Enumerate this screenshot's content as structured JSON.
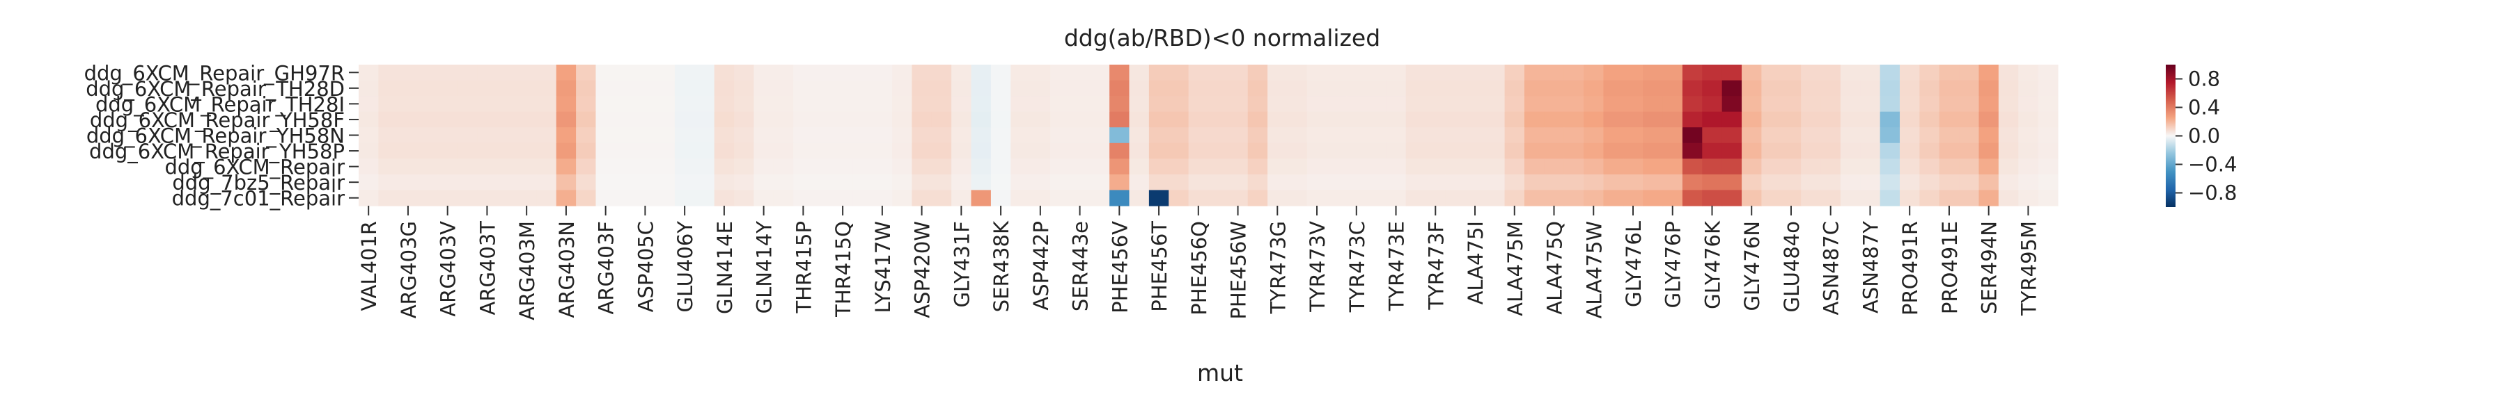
{
  "chart_data": {
    "type": "heatmap",
    "title": "ddg(ab/RBD)<0 normalized",
    "xlabel": "mut",
    "ylabel": "",
    "rows": [
      "ddg_6XCM_Repair_GH97R",
      "ddg_6XCM_Repair_TH28D",
      "ddg_6XCM_Repair_TH28I",
      "ddg_6XCM_Repair_YH58F",
      "ddg_6XCM_Repair_YH58N",
      "ddg_6XCM_Repair_YH58P",
      "ddg_6XCM_Repair",
      "ddg_7bz5_Repair",
      "ddg_7c01_Repair"
    ],
    "x_tick_labels": [
      "VAL401R",
      "ARG403G",
      "ARG403V",
      "ARG403T",
      "ARG403M",
      "ARG403N",
      "ARG403F",
      "ASP405C",
      "GLU406Y",
      "GLN414E",
      "GLN414Y",
      "THR415P",
      "THR415Q",
      "LYS417W",
      "ASP420W",
      "GLY431F",
      "SER438K",
      "ASP442P",
      "SER443e",
      "PHE456V",
      "PHE456T",
      "PHE456Q",
      "PHE456W",
      "TYR473G",
      "TYR473V",
      "TYR473C",
      "TYR473E",
      "TYR473F",
      "ALA475I",
      "ALA475M",
      "ALA475Q",
      "ALA475W",
      "GLY476L",
      "GLY476P",
      "GLY476K",
      "GLY476N",
      "GLU484o",
      "ASN487C",
      "ASN487Y",
      "PRO491R",
      "PRO491E",
      "SER494N",
      "TYR495M"
    ],
    "n_columns": 86,
    "columns_per_tick": 2,
    "colorbar": {
      "colormap": "RdBu_r",
      "vmin": -1.0,
      "vmax": 1.0,
      "tick_labels": [
        "0.8",
        "0.4",
        "0.0",
        "−0.4",
        "−0.8"
      ],
      "tick_values": [
        0.8,
        0.4,
        0.0,
        -0.4,
        -0.8
      ]
    },
    "column_profile": [
      0.04,
      0.06,
      0.06,
      0.06,
      0.06,
      0.06,
      0.06,
      0.06,
      0.06,
      0.06,
      0.26,
      0.12,
      0.01,
      0.01,
      0.01,
      0.01,
      -0.02,
      -0.02,
      0.07,
      0.06,
      0.03,
      0.03,
      0.02,
      0.02,
      0.02,
      0.02,
      0.02,
      0.03,
      0.09,
      0.09,
      0.04,
      -0.04,
      -0.01,
      0.04,
      0.04,
      0.03,
      0.03,
      0.03,
      0.35,
      0.05,
      0.13,
      0.13,
      0.09,
      0.09,
      0.09,
      0.13,
      0.05,
      0.05,
      0.04,
      0.04,
      0.04,
      0.04,
      0.04,
      0.06,
      0.06,
      0.06,
      0.06,
      0.06,
      0.12,
      0.2,
      0.2,
      0.2,
      0.22,
      0.26,
      0.26,
      0.28,
      0.28,
      0.62,
      0.66,
      0.66,
      0.18,
      0.12,
      0.12,
      0.09,
      0.09,
      0.05,
      0.05,
      -0.15,
      0.08,
      0.12,
      0.16,
      0.16,
      0.26,
      0.06,
      0.04,
      0.03
    ],
    "row_factors": [
      1.0,
      1.08,
      1.04,
      1.15,
      1.0,
      1.08,
      0.88,
      0.65,
      0.85
    ],
    "highlights": [
      {
        "row": 1,
        "col": 69,
        "value": 0.95
      },
      {
        "row": 2,
        "col": 69,
        "value": 0.92
      },
      {
        "row": 4,
        "col": 67,
        "value": 0.96
      },
      {
        "row": 5,
        "col": 67,
        "value": 0.9
      },
      {
        "row": 8,
        "col": 38,
        "value": -0.55
      },
      {
        "row": 8,
        "col": 40,
        "value": -0.95
      },
      {
        "row": 8,
        "col": 31,
        "value": 0.3
      },
      {
        "row": 4,
        "col": 38,
        "value": -0.3
      },
      {
        "row": 3,
        "col": 77,
        "value": -0.3
      },
      {
        "row": 4,
        "col": 77,
        "value": -0.28
      }
    ]
  }
}
